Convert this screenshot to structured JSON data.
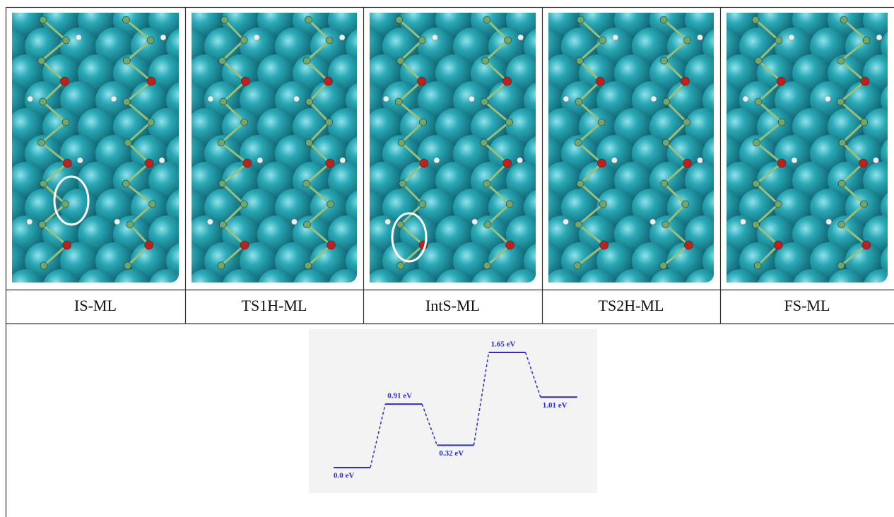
{
  "table": {
    "labels": [
      "IS-ML",
      "TS1H-ML",
      "IntS-ML",
      "TS2H-ML",
      "FS-ML"
    ]
  },
  "chart_data": {
    "type": "energy-profile",
    "values": [
      0.0,
      0.91,
      0.32,
      1.65,
      1.01
    ],
    "value_labels": [
      "0.0 eV",
      "0.91 eV",
      "0.32 eV",
      "1.65 eV",
      "1.01 eV"
    ],
    "color": "#2a2ad0"
  }
}
